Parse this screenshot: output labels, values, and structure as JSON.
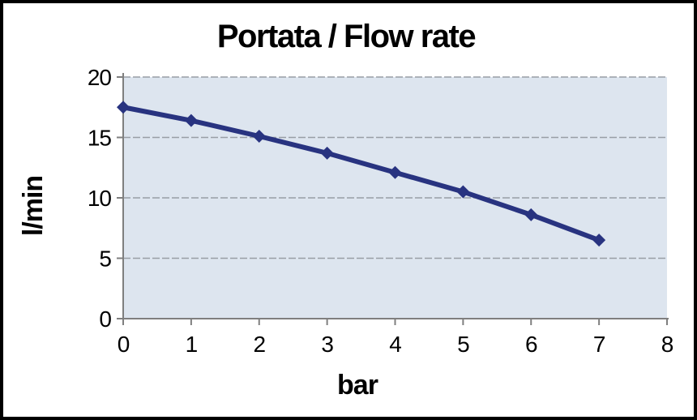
{
  "window": {
    "background": "#ffffff",
    "frame_border_color": "#000000"
  },
  "chart_data": {
    "type": "line",
    "title": "Portata / Flow rate",
    "xlabel": "bar",
    "ylabel": "l/min",
    "x": [
      0,
      1,
      2,
      3,
      4,
      5,
      6,
      7
    ],
    "values": [
      17.5,
      16.4,
      15.1,
      13.7,
      12.1,
      10.5,
      8.6,
      6.5
    ],
    "xlim": [
      0,
      8
    ],
    "ylim": [
      0,
      20
    ],
    "x_ticks": [
      "0",
      "1",
      "2",
      "3",
      "4",
      "5",
      "6",
      "7",
      "8"
    ],
    "y_ticks": [
      "0",
      "5",
      "10",
      "15",
      "20"
    ],
    "grid": "horizontal-dashed",
    "legend_position": "none",
    "marker": "diamond",
    "colors": {
      "line": "#283380",
      "marker": "#283380",
      "plot_background": "#dde5ef",
      "gridline": "#989ea6",
      "axis": "#7f7f7f",
      "text": "#000000"
    }
  }
}
